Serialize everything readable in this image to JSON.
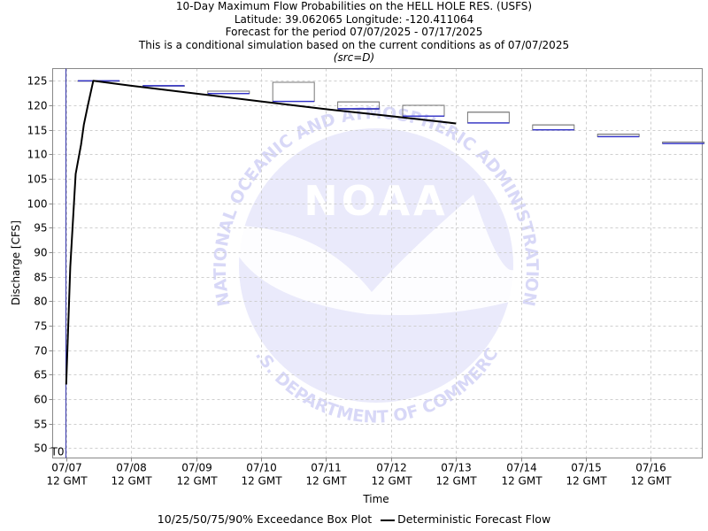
{
  "header": {
    "line1": "10-Day Maximum Flow Probabilities on the HELL HOLE RES. (USFS)",
    "line2": "Latitude: 39.062065 Longitude: -120.411064",
    "line3": "Forecast for the period 07/07/2025 - 07/17/2025",
    "line4": "This is a conditional simulation based on the current conditions as of 07/07/2025",
    "line5": "(src=D)"
  },
  "watermark": {
    "arc_top": "NATIONAL OCEANIC AND ATMOSPHERIC ADMINISTRATION",
    "arc_bottom": "U.S. DEPARTMENT OF COMMERCE",
    "logo_text": "NOAA",
    "color": "#d8d8f7"
  },
  "legend": {
    "box_label": "10/25/50/75/90% Exceedance Box Plot",
    "line_label": "Deterministic Forecast Flow"
  },
  "chart_data": {
    "type": "line",
    "xlabel": "Time",
    "ylabel": "Discharge [CFS]",
    "ylim": [
      48,
      127.5
    ],
    "xlim": [
      "07/07 07:00",
      "07/17 07:00"
    ],
    "yticks": [
      50,
      55,
      60,
      65,
      70,
      75,
      80,
      85,
      90,
      95,
      100,
      105,
      110,
      115,
      120,
      125
    ],
    "xticks": [
      {
        "date": "07/07 12:00",
        "line1": "07/07",
        "line2": "12 GMT"
      },
      {
        "date": "07/08 12:00",
        "line1": "07/08",
        "line2": "12 GMT"
      },
      {
        "date": "07/09 12:00",
        "line1": "07/09",
        "line2": "12 GMT"
      },
      {
        "date": "07/10 12:00",
        "line1": "07/10",
        "line2": "12 GMT"
      },
      {
        "date": "07/11 12:00",
        "line1": "07/11",
        "line2": "12 GMT"
      },
      {
        "date": "07/12 12:00",
        "line1": "07/12",
        "line2": "12 GMT"
      },
      {
        "date": "07/13 12:00",
        "line1": "07/13",
        "line2": "12 GMT"
      },
      {
        "date": "07/14 12:00",
        "line1": "07/14",
        "line2": "12 GMT"
      },
      {
        "date": "07/15 12:00",
        "line1": "07/15",
        "line2": "12 GMT"
      },
      {
        "date": "07/16 12:00",
        "line1": "07/16",
        "line2": "12 GMT"
      }
    ],
    "grid": true,
    "t0": {
      "label": "T0",
      "date": "07/07 12:00",
      "color": "#3333aa"
    },
    "box_color": "#3333cc",
    "boxes": [
      {
        "start": "07/07 12:00",
        "end": "07/08 12:00",
        "p10": 125.0,
        "p25": 125.0,
        "p50": 125.0,
        "p75": 125.0,
        "p90": 125.0
      },
      {
        "start": "07/08 12:00",
        "end": "07/09 12:00",
        "p10": 124.0,
        "p25": 124.0,
        "p50": 124.0,
        "p75": 124.0,
        "p90": 124.0
      },
      {
        "start": "07/09 12:00",
        "end": "07/10 12:00",
        "p10": 122.4,
        "p25": 122.4,
        "p50": 122.4,
        "p75": 122.9,
        "p90": 122.9
      },
      {
        "start": "07/10 12:00",
        "end": "07/11 12:00",
        "p10": 120.8,
        "p25": 120.8,
        "p50": 120.8,
        "p75": 124.7,
        "p90": 124.7
      },
      {
        "start": "07/11 12:00",
        "end": "07/12 12:00",
        "p10": 119.2,
        "p25": 119.3,
        "p50": 119.3,
        "p75": 120.7,
        "p90": 120.7
      },
      {
        "start": "07/12 12:00",
        "end": "07/13 12:00",
        "p10": 117.8,
        "p25": 117.8,
        "p50": 117.8,
        "p75": 120.0,
        "p90": 120.0
      },
      {
        "start": "07/13 12:00",
        "end": "07/14 12:00",
        "p10": 116.4,
        "p25": 116.4,
        "p50": 116.4,
        "p75": 118.6,
        "p90": 118.6
      },
      {
        "start": "07/14 12:00",
        "end": "07/15 12:00",
        "p10": 115.0,
        "p25": 115.0,
        "p50": 115.0,
        "p75": 116.0,
        "p90": 116.0
      },
      {
        "start": "07/15 12:00",
        "end": "07/16 12:00",
        "p10": 113.6,
        "p25": 113.6,
        "p50": 113.6,
        "p75": 114.1,
        "p90": 114.1
      },
      {
        "start": "07/16 12:00",
        "end": "07/17 12:00",
        "p10": 112.2,
        "p25": 112.2,
        "p50": 112.2,
        "p75": 112.5,
        "p90": 112.5
      }
    ],
    "series": [
      {
        "color": "#000000",
        "points": [
          {
            "x": "07/07 12:00",
            "y": 63.0
          },
          {
            "x": "07/07 13:30",
            "y": 87.0
          },
          {
            "x": "07/07 15:30",
            "y": 106.0
          },
          {
            "x": "07/07 17:30",
            "y": 112.0
          },
          {
            "x": "07/07 18:30",
            "y": 116.0
          },
          {
            "x": "07/07 20:00",
            "y": 120.0
          },
          {
            "x": "07/07 22:00",
            "y": 125.0
          },
          {
            "x": "07/08 12:00",
            "y": 124.0
          },
          {
            "x": "07/09 12:00",
            "y": 122.4
          },
          {
            "x": "07/10 12:00",
            "y": 120.8
          },
          {
            "x": "07/11 12:00",
            "y": 119.2
          },
          {
            "x": "07/12 12:00",
            "y": 117.8
          },
          {
            "x": "07/13 12:00",
            "y": 116.3
          }
        ]
      }
    ]
  }
}
